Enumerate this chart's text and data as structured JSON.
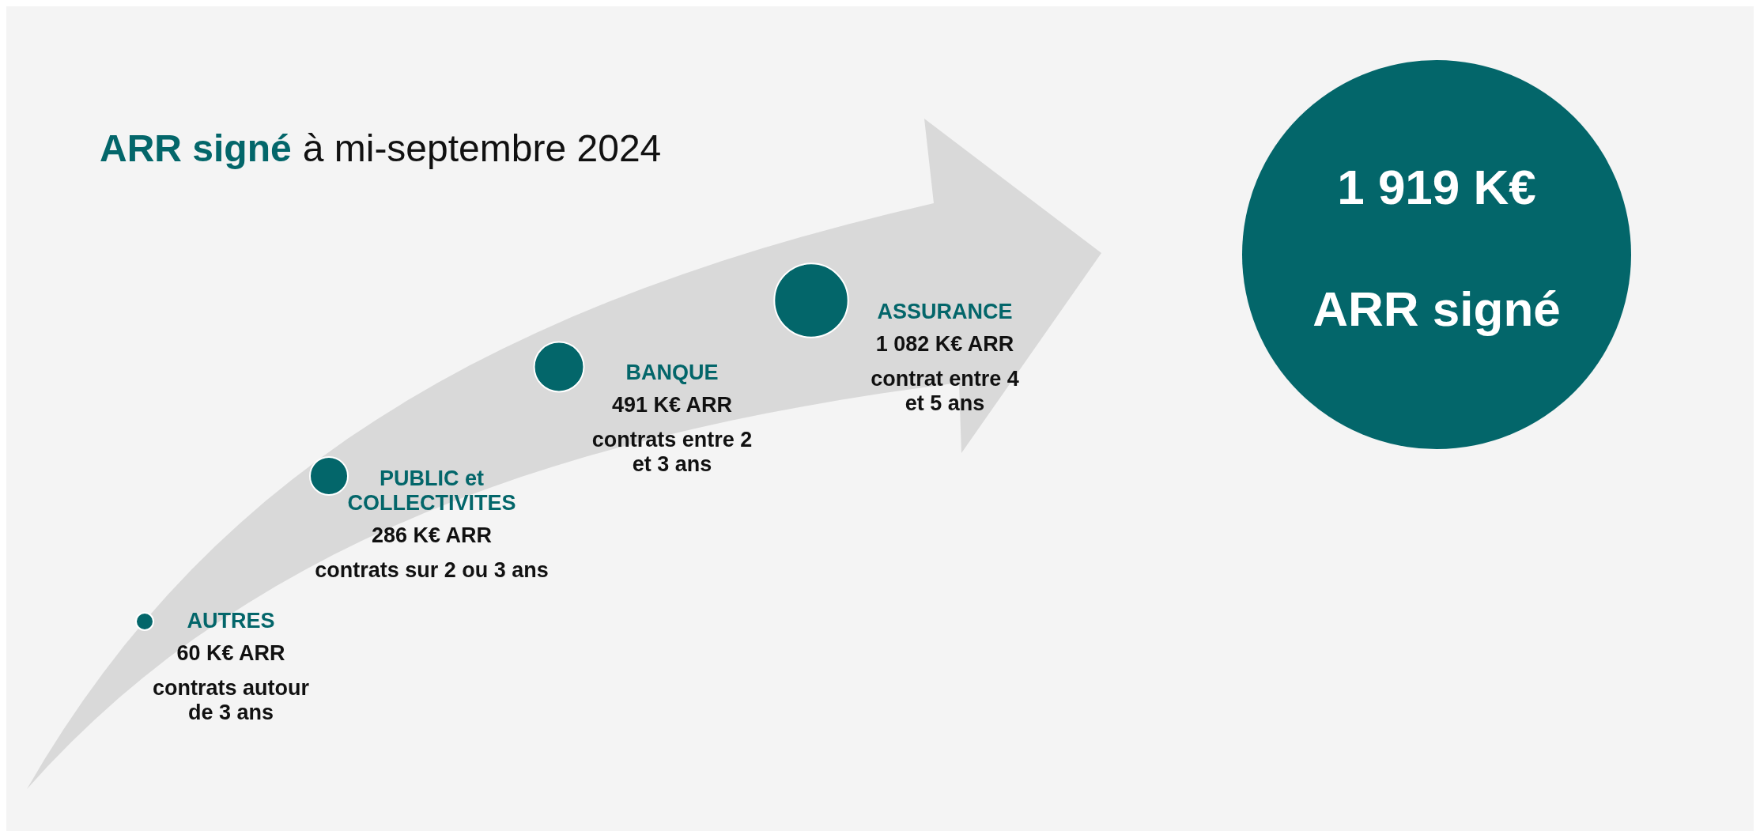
{
  "chart_data": {
    "type": "other",
    "title": "ARR signé",
    "subtitle": "à mi-septembre 2024",
    "categories": [
      "AUTRES",
      "PUBLIC et\nCOLLECTIVITES",
      "BANQUE",
      "ASSURANCE"
    ],
    "values": [
      60,
      286,
      491,
      1082
    ],
    "value_labels": [
      "60 K€ ARR",
      "286 K€ ARR",
      "491 K€ ARR",
      "1 082 K€ ARR"
    ],
    "annotations": [
      "contrats autour\nde 3 ans",
      "contrats sur 2 ou 3 ans",
      "contrats entre 2\net 3 ans",
      "contrat entre 4\net 5 ans",
      "1 919 K€",
      "ARR signé"
    ]
  }
}
